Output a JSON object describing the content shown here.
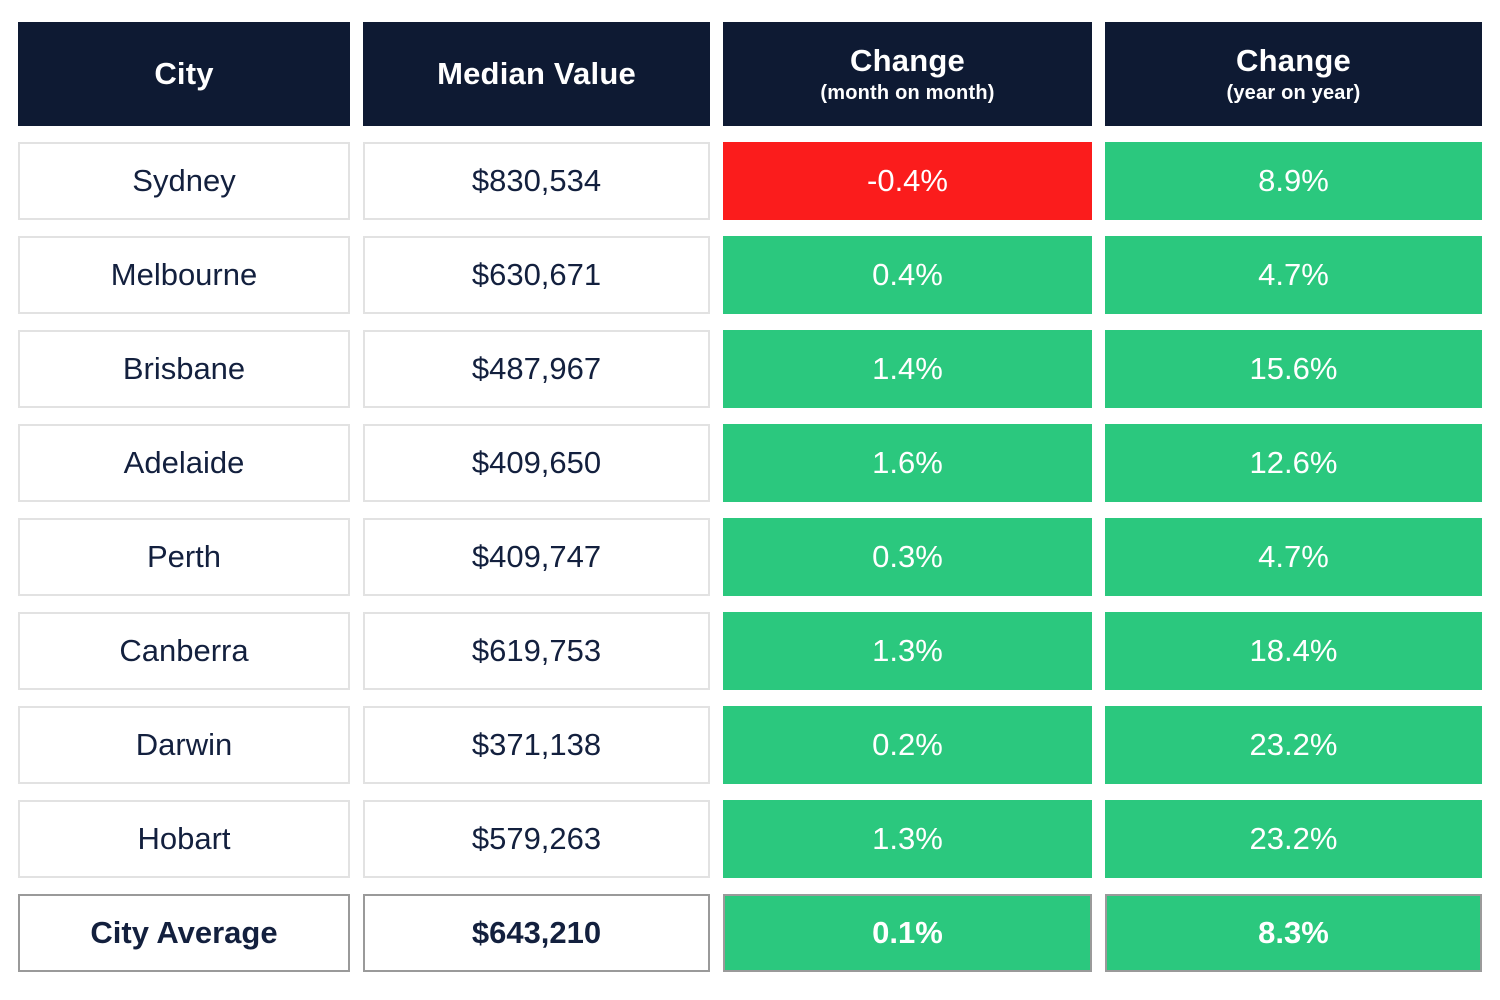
{
  "colors": {
    "header_bg": "#0e1a33",
    "positive_bg": "#2bc87e",
    "negative_bg": "#fb1c1c",
    "text_navy": "#13203e",
    "cell_border": "#e2e2e2",
    "summary_border": "#9a9a9a",
    "change_text": "#ffffff"
  },
  "table": {
    "columns": [
      {
        "label": "City",
        "sublabel": ""
      },
      {
        "label": "Median Value",
        "sublabel": ""
      },
      {
        "label": "Change",
        "sublabel": "(month on month)"
      },
      {
        "label": "Change",
        "sublabel": "(year on year)"
      }
    ],
    "rows": [
      {
        "city": "Sydney",
        "median_value": "$830,534",
        "change_mom": "-0.4%",
        "mom_direction": "negative",
        "change_yoy": "8.9%",
        "yoy_direction": "positive",
        "is_summary": false
      },
      {
        "city": "Melbourne",
        "median_value": "$630,671",
        "change_mom": "0.4%",
        "mom_direction": "positive",
        "change_yoy": "4.7%",
        "yoy_direction": "positive",
        "is_summary": false
      },
      {
        "city": "Brisbane",
        "median_value": "$487,967",
        "change_mom": "1.4%",
        "mom_direction": "positive",
        "change_yoy": "15.6%",
        "yoy_direction": "positive",
        "is_summary": false
      },
      {
        "city": "Adelaide",
        "median_value": "$409,650",
        "change_mom": "1.6%",
        "mom_direction": "positive",
        "change_yoy": "12.6%",
        "yoy_direction": "positive",
        "is_summary": false
      },
      {
        "city": "Perth",
        "median_value": "$409,747",
        "change_mom": "0.3%",
        "mom_direction": "positive",
        "change_yoy": "4.7%",
        "yoy_direction": "positive",
        "is_summary": false
      },
      {
        "city": "Canberra",
        "median_value": "$619,753",
        "change_mom": "1.3%",
        "mom_direction": "positive",
        "change_yoy": "18.4%",
        "yoy_direction": "positive",
        "is_summary": false
      },
      {
        "city": "Darwin",
        "median_value": "$371,138",
        "change_mom": "0.2%",
        "mom_direction": "positive",
        "change_yoy": "23.2%",
        "yoy_direction": "positive",
        "is_summary": false
      },
      {
        "city": "Hobart",
        "median_value": "$579,263",
        "change_mom": "1.3%",
        "mom_direction": "positive",
        "change_yoy": "23.2%",
        "yoy_direction": "positive",
        "is_summary": false
      },
      {
        "city": "City Average",
        "median_value": "$643,210",
        "change_mom": "0.1%",
        "mom_direction": "positive",
        "change_yoy": "8.3%",
        "yoy_direction": "positive",
        "is_summary": true
      }
    ]
  }
}
